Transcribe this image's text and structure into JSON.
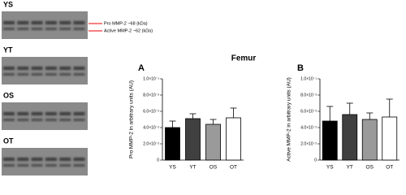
{
  "figure_title": "Femur",
  "gels": [
    {
      "label": "YS"
    },
    {
      "label": "YT"
    },
    {
      "label": "OS"
    },
    {
      "label": "OT"
    }
  ],
  "annotations": [
    "Pro MMP-2 ~68 (kDa)",
    "Active MMP-2 ~62 (kDa)"
  ],
  "chart_data": [
    {
      "type": "bar",
      "panel": "A",
      "y_label": "Pro MMP-2 in arbitrary units (AU)",
      "categories": [
        "YS",
        "YT",
        "OS",
        "OT"
      ],
      "values": [
        0.04,
        0.051,
        0.044,
        0.052
      ],
      "errors": [
        0.008,
        0.006,
        0.006,
        0.012
      ],
      "colors": [
        "#000000",
        "#404040",
        "#9a9a9a",
        "#ffffff"
      ],
      "ylim": [
        0,
        0.1
      ],
      "yticks": [
        0,
        {
          "value": 0.02,
          "label": "2.0×10⁻²"
        },
        {
          "value": 0.04,
          "label": "4.0×10⁻²"
        },
        {
          "value": 0.06,
          "label": "6.0×10⁻²"
        },
        {
          "value": 0.08,
          "label": "8.0×10⁻²"
        },
        {
          "value": 0.1,
          "label": "1.0×10⁻¹"
        }
      ]
    },
    {
      "type": "bar",
      "panel": "B",
      "y_label": "Active MMP-2 in arbitrary units (AU)",
      "categories": [
        "YS",
        "YT",
        "OS",
        "OT"
      ],
      "values": [
        0.048,
        0.056,
        0.05,
        0.053
      ],
      "errors": [
        0.018,
        0.014,
        0.008,
        0.022
      ],
      "colors": [
        "#000000",
        "#404040",
        "#9a9a9a",
        "#ffffff"
      ],
      "ylim": [
        0,
        0.1
      ],
      "yticks": [
        0,
        {
          "value": 0.02,
          "label": "2.0×10⁻²"
        },
        {
          "value": 0.04,
          "label": "4.0×10⁻²"
        },
        {
          "value": 0.06,
          "label": "6.0×10⁻²"
        },
        {
          "value": 0.08,
          "label": "8.0×10⁻²"
        },
        {
          "value": 0.1,
          "label": "1.0×10⁻¹"
        }
      ]
    }
  ]
}
